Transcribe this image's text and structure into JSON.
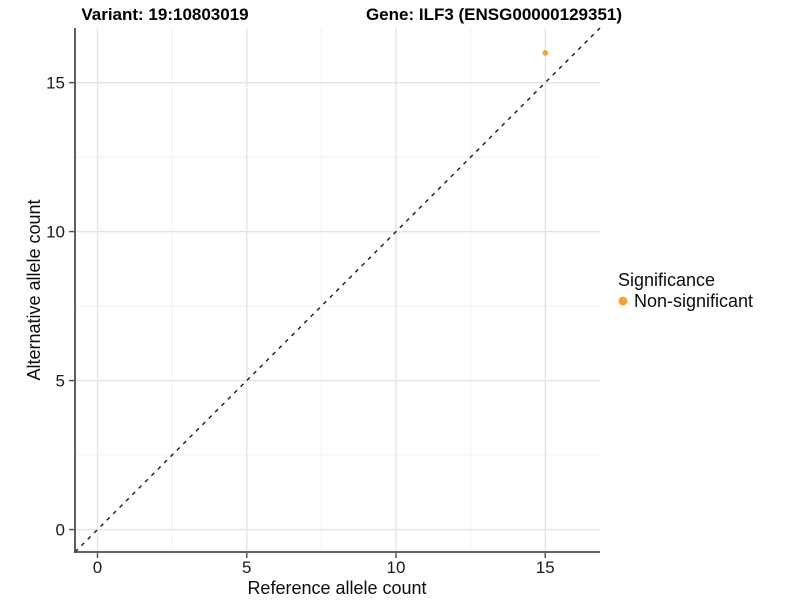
{
  "titles": {
    "variant": "Variant: 19:10803019",
    "gene": "Gene: ILF3 (ENSG00000129351)"
  },
  "axes": {
    "x_label": "Reference allele count",
    "y_label": "Alternative allele count"
  },
  "legend": {
    "title": "Significance",
    "items": [
      {
        "label": "Non-significant",
        "color": "#F8A030"
      }
    ]
  },
  "colors": {
    "point_orange": "#F8A030",
    "reference_line": "#1a1a1a",
    "axis_line": "#4d4d4d",
    "major_grid": "#e4e4e4",
    "minor_grid": "#f0f0f0"
  },
  "chart_data": {
    "type": "scatter",
    "title": "Variant: 19:10803019 — Gene: ILF3 (ENSG00000129351)",
    "xlabel": "Reference allele count",
    "ylabel": "Alternative allele count",
    "xlim": [
      -0.754,
      16.834
    ],
    "ylim": [
      -0.754,
      16.834
    ],
    "x_ticks": [
      0,
      5,
      10,
      15
    ],
    "y_ticks": [
      0,
      5,
      10,
      15
    ],
    "x_minor_ticks": [
      2.5,
      7.5,
      12.5
    ],
    "y_minor_ticks": [
      2.5,
      7.5,
      12.5
    ],
    "grid": true,
    "legend_position": "right",
    "series": [
      {
        "name": "Non-significant",
        "color": "#F8A030",
        "points": [
          {
            "x": 15,
            "y": 16
          }
        ]
      }
    ],
    "reference_line": {
      "type": "identity y=x",
      "style": "dashed",
      "color": "#1a1a1a"
    }
  }
}
